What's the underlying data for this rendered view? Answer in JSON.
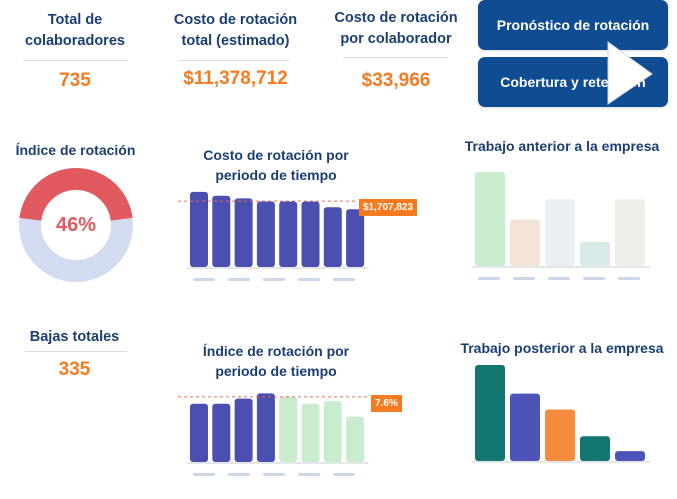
{
  "kpis": {
    "total_employees": {
      "label": "Total de colaboradores",
      "value": "735"
    },
    "turnover_cost_total": {
      "label": "Costo de rotación total (estimado)",
      "value": "$11,378,712"
    },
    "turnover_cost_per_employee": {
      "label": "Costo de rotación por colaborador",
      "value": "$33,966"
    },
    "total_exits": {
      "label": "Bajas totales",
      "value": "335"
    }
  },
  "nav": {
    "forecast_label": "Pronóstico de rotación",
    "coverage_label": "Cobertura y retención"
  },
  "turnover_index": {
    "title": "Índice de rotación",
    "value_label": "46%",
    "colors": {
      "filled": "#e05a60",
      "rest": "#d3dbf0"
    }
  },
  "charts": {
    "cost_by_period": {
      "title_line1": "Costo de rotación por",
      "title_line2": "periodo de tiempo",
      "callout": "$1,707,823"
    },
    "index_by_period": {
      "title_line1": "Índice de rotación por",
      "title_line2": "periodo de tiempo",
      "callout": "7.6%"
    },
    "prev_job": {
      "title": "Trabajo anterior a la empresa"
    },
    "next_job": {
      "title": "Trabajo posterior a la empresa"
    }
  },
  "chart_data": [
    {
      "type": "bar",
      "id": "cost_by_period",
      "values": [
        1.95,
        1.85,
        1.78,
        1.7,
        1.7,
        1.7,
        1.55,
        1.5
      ],
      "colors": [
        "#4a4fb0",
        "#4a4fb0",
        "#4a4fb0",
        "#4a4fb0",
        "#4a4fb0",
        "#4a4fb0",
        "#4a4fb0",
        "#4a4fb0"
      ],
      "reference_line": 1.707823,
      "ylim": [
        0,
        2.05
      ]
    },
    {
      "type": "bar",
      "id": "index_by_period",
      "values": [
        6.8,
        6.8,
        7.4,
        8.0,
        7.6,
        6.8,
        7.1,
        5.3
      ],
      "colors": [
        "#4a4fb0",
        "#4a4fb0",
        "#4a4fb0",
        "#4a4fb0",
        "#c9eccf",
        "#c9eccf",
        "#c9eccf",
        "#c9eccf"
      ],
      "reference_line": 7.6,
      "ylim": [
        0,
        8.4
      ]
    },
    {
      "type": "bar",
      "id": "prev_job",
      "values": [
        9.3,
        4.6,
        6.6,
        2.4,
        6.6
      ],
      "colors": [
        "#c9eccf",
        "#f4e4d5",
        "#ebeef0",
        "#d8ebe8",
        "#eeeeea"
      ],
      "ylim": [
        0,
        9.6
      ]
    },
    {
      "type": "bar",
      "id": "next_job",
      "values": [
        9.7,
        6.8,
        5.2,
        2.5,
        1.0
      ],
      "colors": [
        "#147670",
        "#4a55b7",
        "#f58c3d",
        "#147670",
        "#4a55b7"
      ],
      "ylim": [
        0,
        10
      ]
    }
  ]
}
